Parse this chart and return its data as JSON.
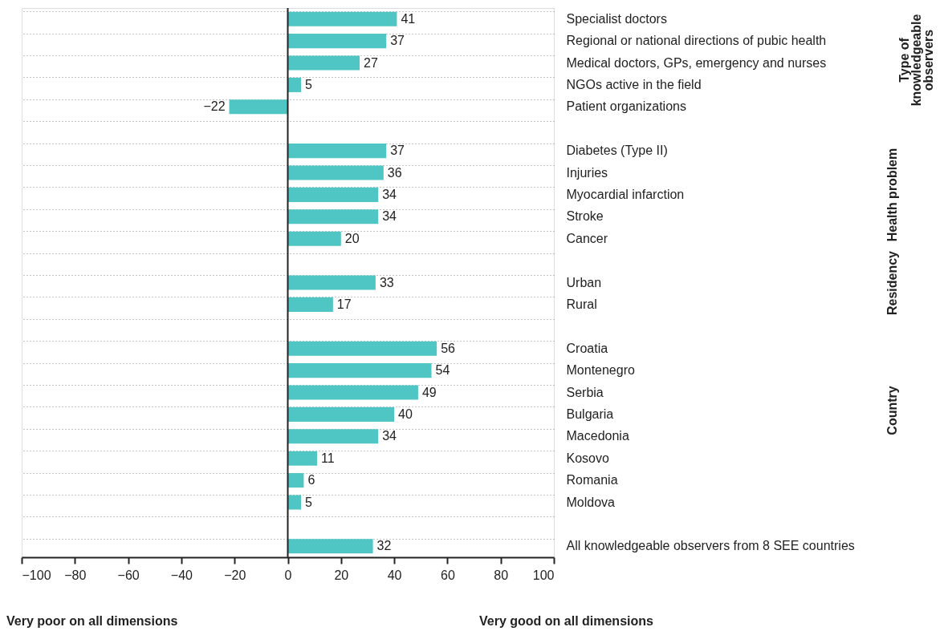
{
  "chart_data": {
    "type": "bar",
    "orientation": "horizontal",
    "categories": [
      "Specialist doctors",
      "Regional or national directions of pubic health",
      "Medical doctors, GPs, emergency and nurses",
      "NGOs active in the field",
      "Patient organizations",
      null,
      "Diabetes (Type II)",
      "Injuries",
      "Myocardial infarction",
      "Stroke",
      "Cancer",
      null,
      "Urban",
      "Rural",
      null,
      "Croatia",
      "Montenegro",
      "Serbia",
      "Bulgaria",
      "Macedonia",
      "Kosovo",
      "Romania",
      "Moldova",
      null,
      "All knowledgeable observers from 8 SEE countries"
    ],
    "values": [
      41,
      37,
      27,
      5,
      -22,
      null,
      37,
      36,
      34,
      34,
      20,
      null,
      33,
      17,
      null,
      56,
      54,
      49,
      40,
      34,
      11,
      6,
      5,
      null,
      32
    ],
    "color": "#4fc6c4",
    "xlim": [
      -100,
      100
    ],
    "xticks": [
      -100,
      -80,
      -60,
      -40,
      -20,
      0,
      20,
      40,
      60,
      80,
      100
    ],
    "grid": "y",
    "data_labels": true,
    "annotations": [
      "Very poor on all dimensions",
      "Very good on all dimensions",
      "Type of knowledgeable observers",
      "Health problem",
      "Residency",
      "Country"
    ]
  }
}
